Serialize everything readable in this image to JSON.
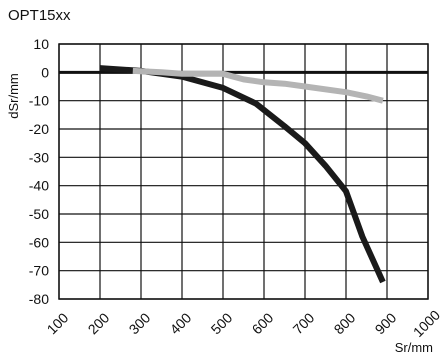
{
  "chart_data": {
    "type": "line",
    "title": "OPT15xx",
    "xlabel": "Sr/mm",
    "ylabel": "dSr/mm",
    "xlim": [
      100,
      1000
    ],
    "ylim": [
      -80,
      10
    ],
    "xticks": [
      100,
      200,
      300,
      400,
      500,
      600,
      700,
      800,
      900,
      1000
    ],
    "yticks": [
      10,
      0,
      -10,
      -20,
      -30,
      -40,
      -50,
      -60,
      -70,
      -80
    ],
    "grid": true,
    "zero_line": true,
    "series": [
      {
        "color": "#1a1a1a",
        "x": [
          200,
          300,
          400,
          500,
          580,
          650,
          700,
          750,
          800,
          840,
          890
        ],
        "y": [
          1.5,
          0.5,
          -1.5,
          -5.5,
          -11,
          -19,
          -25,
          -33,
          -42,
          -58,
          -74
        ]
      },
      {
        "color": "#b4b4b4",
        "x": [
          280,
          350,
          400,
          500,
          550,
          600,
          650,
          700,
          800,
          850,
          890
        ],
        "y": [
          0.5,
          0,
          -0.5,
          -0.5,
          -2.5,
          -3.5,
          -4,
          -5,
          -7,
          -8.5,
          -10
        ]
      }
    ]
  }
}
